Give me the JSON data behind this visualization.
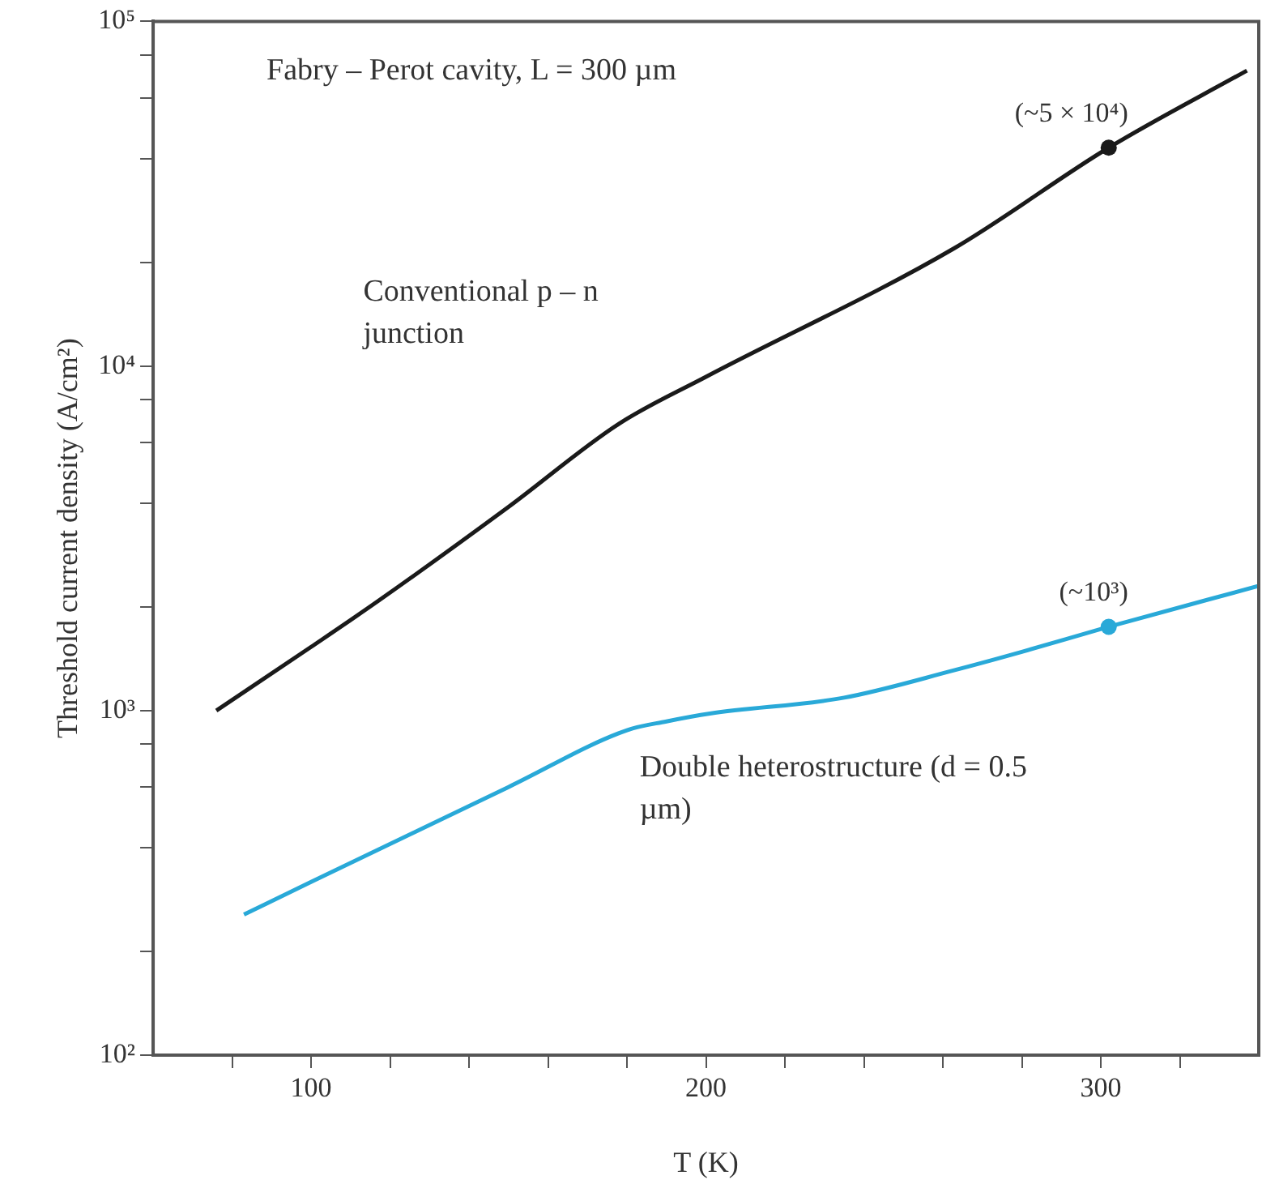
{
  "chart_data": {
    "type": "line",
    "xlabel": "T (K)",
    "ylabel": "Threshold current density (A/cm²)",
    "xlim": [
      60,
      340
    ],
    "xticks": [
      {
        "value": 80,
        "label": null
      },
      100,
      {
        "value": 120,
        "label": null
      },
      {
        "value": 140,
        "label": null
      },
      {
        "value": 160,
        "label": null
      },
      {
        "value": 180,
        "label": null
      },
      200,
      {
        "value": 220,
        "label": null
      },
      {
        "value": 240,
        "label": null
      },
      {
        "value": 260,
        "label": null
      },
      {
        "value": 280,
        "label": null
      },
      300,
      {
        "value": 320,
        "label": null
      }
    ],
    "ylim": [
      100,
      100000
    ],
    "yticks": [
      {
        "value": 100,
        "label": "10²"
      },
      {
        "value": 200,
        "label": null
      },
      {
        "value": 400,
        "label": null
      },
      {
        "value": 600,
        "label": null
      },
      {
        "value": 800,
        "label": null
      },
      {
        "value": 1000,
        "label": "10³"
      },
      {
        "value": 2000,
        "label": null
      },
      {
        "value": 4000,
        "label": null
      },
      {
        "value": 6000,
        "label": null
      },
      {
        "value": 8000,
        "label": null
      },
      {
        "value": 10000,
        "label": "10⁴"
      },
      {
        "value": 20000,
        "label": null
      },
      {
        "value": 40000,
        "label": null
      },
      {
        "value": 60000,
        "label": null
      },
      {
        "value": 80000,
        "label": null
      },
      {
        "value": 100000,
        "label": "10⁵"
      }
    ],
    "log": "y",
    "grid": false,
    "legend": false,
    "marker": "none",
    "line_style": "solid",
    "series": [
      {
        "name": "Conventional p – n junction",
        "color": "#1a1a1a",
        "x": [
          76,
          100,
          117,
          150,
          178,
          200,
          263,
          302,
          337
        ],
        "values": [
          1000,
          1530,
          2080,
          3900,
          6800,
          9300,
          22000,
          43000,
          72000
        ]
      },
      {
        "name": "Double heterostructure (d = 0.5 µm)",
        "color": "#29a9d8",
        "x": [
          83,
          100,
          150,
          180,
          190,
          201,
          235,
          263,
          280,
          302,
          340
        ],
        "values": [
          256,
          318,
          600,
          877,
          930,
          980,
          1090,
          1310,
          1480,
          1750,
          2300
        ]
      }
    ],
    "annotations": [
      "Fabry – Perot cavity, L = 300 µm",
      {
        "text": "(~5 × 10⁴)",
        "x": 302,
        "y": 43000
      },
      {
        "text": "(~10³)",
        "x": 302,
        "y": 1750
      }
    ]
  }
}
